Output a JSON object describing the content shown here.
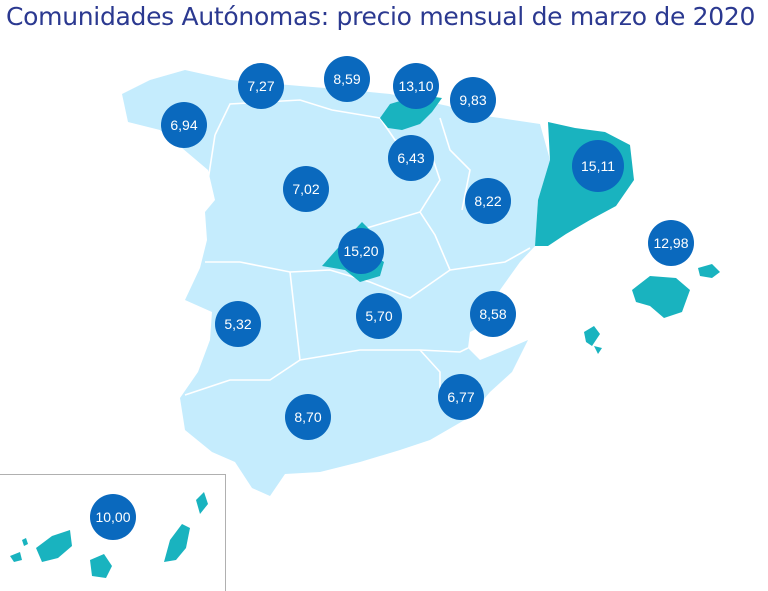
{
  "title": "Comunidades Autónomas: precio mensual de marzo de 2020",
  "colors": {
    "region_default": "#c5ecfd",
    "region_highlight": "#19b3bf",
    "border": "#ffffff",
    "badge": "#0a69be",
    "title": "#2b3990"
  },
  "regions": [
    {
      "id": "galicia",
      "value": "6,94"
    },
    {
      "id": "asturias",
      "value": "7,27"
    },
    {
      "id": "cantabria",
      "value": "8,59"
    },
    {
      "id": "pais-vasco",
      "value": "13,10"
    },
    {
      "id": "navarra",
      "value": "9,83"
    },
    {
      "id": "la-rioja",
      "value": "6,43"
    },
    {
      "id": "castilla-y-leon",
      "value": "7,02"
    },
    {
      "id": "aragon",
      "value": "8,22"
    },
    {
      "id": "cataluna",
      "value": "15,11"
    },
    {
      "id": "baleares",
      "value": "12,98"
    },
    {
      "id": "madrid",
      "value": "15,20"
    },
    {
      "id": "extremadura",
      "value": "5,32"
    },
    {
      "id": "castilla-la-mancha",
      "value": "5,70"
    },
    {
      "id": "comunidad-valenciana",
      "value": "8,58"
    },
    {
      "id": "murcia",
      "value": "6,77"
    },
    {
      "id": "andalucia",
      "value": "8,70"
    },
    {
      "id": "canarias",
      "value": "10,00"
    }
  ]
}
